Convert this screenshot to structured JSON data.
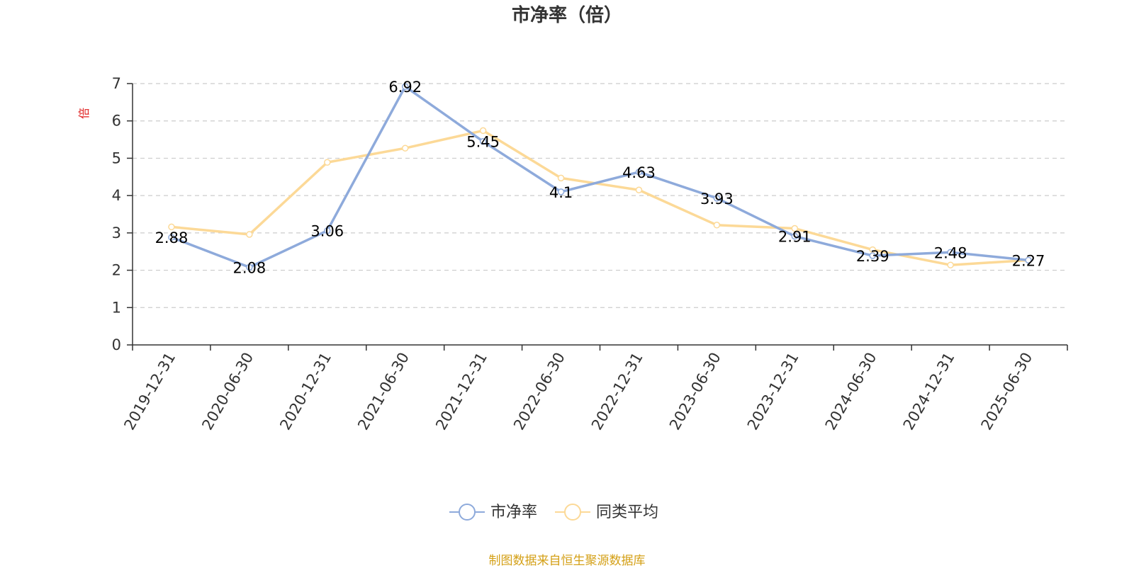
{
  "chart_data": {
    "type": "line",
    "title": "市净率（倍）",
    "ylabel": "倍",
    "xlabel": "",
    "categories": [
      "2019-12-31",
      "2020-06-30",
      "2020-12-31",
      "2021-06-30",
      "2021-12-31",
      "2022-06-30",
      "2022-12-31",
      "2023-06-30",
      "2023-12-31",
      "2024-06-30",
      "2024-12-31",
      "2025-06-30"
    ],
    "yticks": [
      "0",
      "1",
      "2",
      "3",
      "4",
      "5",
      "6",
      "7"
    ],
    "ylim": [
      0,
      7
    ],
    "grid": true,
    "legend_position": "bottom-center",
    "series": [
      {
        "name": "市净率",
        "color": "#8eaadb",
        "values": [
          2.88,
          2.08,
          3.06,
          6.92,
          5.45,
          4.1,
          4.63,
          3.93,
          2.91,
          2.39,
          2.48,
          2.27
        ],
        "labels": [
          "2.88",
          "2.08",
          "3.06",
          "6.92",
          "5.45",
          "4.1",
          "4.63",
          "3.93",
          "2.91",
          "2.39",
          "2.48",
          "2.27"
        ]
      },
      {
        "name": "同类平均",
        "color": "#fcd997",
        "values": [
          3.16,
          2.96,
          4.89,
          5.27,
          5.74,
          4.47,
          4.15,
          3.21,
          3.12,
          2.55,
          2.14,
          2.27
        ]
      }
    ],
    "ylabel_color": "#e02020",
    "source": "制图数据来自恒生聚源数据库"
  }
}
